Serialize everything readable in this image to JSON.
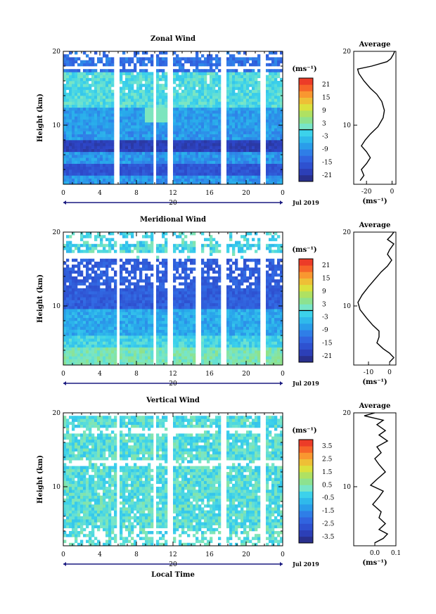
{
  "common": {
    "ylabel": "Height (km)",
    "y_ticks": [
      "20",
      "10"
    ],
    "x_ticks": [
      "0",
      "4",
      "8",
      "12",
      "16",
      "20",
      "0"
    ],
    "date_day": "20",
    "date_label": "Jul 2019",
    "unit_label": "(ms⁻¹)",
    "average_title": "Average",
    "avg_unit": "(ms⁻¹)",
    "xlabel_bottom": "Local Time"
  },
  "chart_data": [
    {
      "type": "heatmap",
      "title": "Zonal Wind",
      "xlabel": "",
      "ylabel": "Height (km)",
      "x_range_hours": [
        0,
        24
      ],
      "ylim_km": [
        2,
        20
      ],
      "colorbar_ticks": [
        "21",
        "15",
        "9",
        "3",
        "-3",
        "-9",
        "-15",
        "-21"
      ],
      "colorbar_range": [
        -24,
        24
      ],
      "features": [
        {
          "height_km": 7.3,
          "value": -21
        },
        {
          "height_km": 4.0,
          "value": -18
        },
        {
          "height_km": 10.0,
          "value": -9
        },
        {
          "height_km": 12.0,
          "value": -3
        },
        {
          "height_km": 18.0,
          "value": -15
        }
      ],
      "average_profile": {
        "xlim": [
          -30,
          3
        ],
        "x_ticks": [
          "-20",
          "0"
        ],
        "points": [
          [
            -25,
            2.5
          ],
          [
            -22,
            3.2
          ],
          [
            -24,
            4.0
          ],
          [
            -20,
            4.8
          ],
          [
            -17,
            5.6
          ],
          [
            -20,
            6.4
          ],
          [
            -24,
            7.2
          ],
          [
            -21,
            8.0
          ],
          [
            -17,
            8.8
          ],
          [
            -11,
            9.8
          ],
          [
            -7,
            11.0
          ],
          [
            -6,
            12.0
          ],
          [
            -8,
            13.2
          ],
          [
            -12,
            14.2
          ],
          [
            -17,
            15.0
          ],
          [
            -22,
            16.0
          ],
          [
            -26,
            17.0
          ],
          [
            -27,
            17.6
          ],
          [
            -16,
            18.0
          ],
          [
            -4,
            18.6
          ],
          [
            -1,
            19.0
          ],
          [
            1,
            19.6
          ],
          [
            2,
            20.0
          ]
        ]
      },
      "gaps_hours": [
        5.8,
        10.0,
        11.8,
        17.6,
        21.8
      ]
    },
    {
      "type": "heatmap",
      "title": "Meridional Wind",
      "xlabel": "",
      "ylabel": "Height (km)",
      "x_range_hours": [
        0,
        24
      ],
      "ylim_km": [
        2,
        20
      ],
      "colorbar_ticks": [
        "21",
        "15",
        "9",
        "3",
        "-3",
        "-9",
        "-15",
        "-21"
      ],
      "colorbar_range": [
        -24,
        24
      ],
      "features": [
        {
          "height_km": 11.0,
          "value": -18
        },
        {
          "height_km": 3.5,
          "value": 0
        },
        {
          "height_km": 8.0,
          "value": -9
        },
        {
          "height_km": 17.5,
          "value": -6
        }
      ],
      "average_profile": {
        "xlim": [
          -17,
          3
        ],
        "x_ticks": [
          "-10",
          "0"
        ],
        "points": [
          [
            0,
            2.4
          ],
          [
            2,
            3.0
          ],
          [
            0,
            3.6
          ],
          [
            -3,
            4.2
          ],
          [
            -6,
            5.0
          ],
          [
            -5,
            5.8
          ],
          [
            -5,
            6.6
          ],
          [
            -8,
            7.4
          ],
          [
            -11,
            8.4
          ],
          [
            -14,
            9.5
          ],
          [
            -15,
            10.5
          ],
          [
            -13,
            11.5
          ],
          [
            -10,
            12.6
          ],
          [
            -7,
            13.6
          ],
          [
            -4,
            14.6
          ],
          [
            -1,
            15.4
          ],
          [
            1,
            16.2
          ],
          [
            -1,
            17.0
          ],
          [
            0,
            17.6
          ],
          [
            2,
            18.4
          ],
          [
            -1,
            19.0
          ],
          [
            1,
            19.6
          ],
          [
            2,
            20.0
          ]
        ]
      },
      "gaps_hours": [
        6.0,
        10.0,
        11.8,
        14.8,
        17.6,
        21.8
      ]
    },
    {
      "type": "heatmap",
      "title": "Vertical Wind",
      "xlabel": "Local Time",
      "ylabel": "Height (km)",
      "x_range_hours": [
        0,
        24
      ],
      "ylim_km": [
        2,
        20
      ],
      "colorbar_ticks": [
        "3.5",
        "2.5",
        "1.5",
        "0.5",
        "-0.5",
        "-1.5",
        "-2.5",
        "-3.5"
      ],
      "colorbar_range": [
        -4,
        4
      ],
      "features": [
        {
          "height_km": 10.0,
          "value": -0.3
        },
        {
          "height_km": 18.0,
          "value": 0.0
        }
      ],
      "average_profile": {
        "xlim": [
          -0.1,
          0.1
        ],
        "x_ticks": [
          "0.0",
          "0.1"
        ],
        "points": [
          [
            0.0,
            2.4
          ],
          [
            0.04,
            3.0
          ],
          [
            0.06,
            3.6
          ],
          [
            0.02,
            4.2
          ],
          [
            0.05,
            5.0
          ],
          [
            0.02,
            5.8
          ],
          [
            0.03,
            6.6
          ],
          [
            -0.01,
            7.6
          ],
          [
            0.02,
            8.6
          ],
          [
            0.04,
            9.4
          ],
          [
            -0.02,
            10.2
          ],
          [
            0.01,
            11.0
          ],
          [
            0.05,
            12.0
          ],
          [
            0.02,
            13.0
          ],
          [
            0.0,
            13.8
          ],
          [
            0.03,
            14.6
          ],
          [
            0.01,
            15.4
          ],
          [
            0.06,
            16.2
          ],
          [
            0.02,
            17.0
          ],
          [
            0.05,
            17.6
          ],
          [
            0.01,
            18.4
          ],
          [
            0.04,
            19.0
          ],
          [
            -0.05,
            19.6
          ],
          [
            0.0,
            20.0
          ]
        ]
      },
      "gaps_hours": [
        6.0,
        10.0,
        11.8,
        17.6,
        21.8
      ]
    }
  ]
}
